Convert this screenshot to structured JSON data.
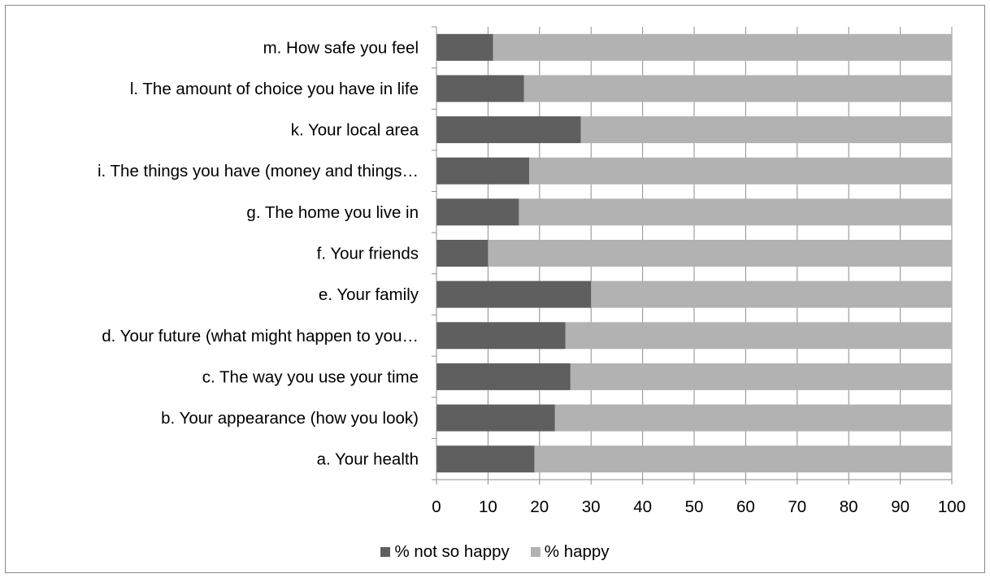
{
  "chart_data": {
    "type": "bar",
    "orientation": "horizontal",
    "stacked": true,
    "categories": [
      "a. Your health",
      "b. Your appearance (how you look)",
      "c. The way you use your time",
      "d. Your future (what might happen to you…",
      "e. Your family",
      "f. Your friends",
      "g. The home you live in",
      "i. The things you have (money and things…",
      "k. Your local area",
      "l. The amount of choice you have in life",
      "m. How safe you feel"
    ],
    "series": [
      {
        "name": "% not so happy",
        "color": "#5f5f5f",
        "values": [
          19,
          23,
          26,
          25,
          30,
          10,
          16,
          18,
          28,
          17,
          11
        ]
      },
      {
        "name": "%  happy",
        "color": "#b2b2b2",
        "values": [
          81,
          77,
          74,
          75,
          70,
          90,
          84,
          82,
          72,
          83,
          89
        ]
      }
    ],
    "xlim": [
      0,
      100
    ],
    "xticks": [
      "0",
      "10",
      "20",
      "30",
      "40",
      "50",
      "60",
      "70",
      "80",
      "90",
      "100"
    ],
    "grid": "vertical",
    "legend_position": "bottom",
    "title": "",
    "xlabel": "",
    "ylabel": ""
  }
}
